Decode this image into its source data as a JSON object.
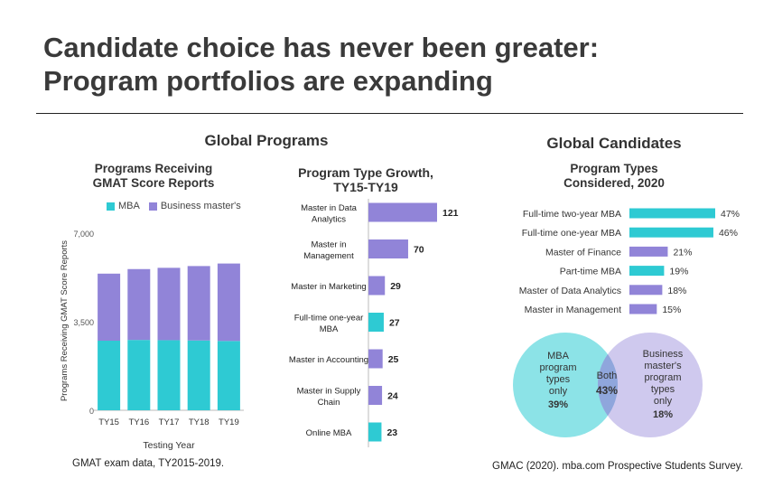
{
  "slide": {
    "title_line1": "Candidate choice has never been greater:",
    "title_line2": "Program portfolios are expanding"
  },
  "sections": {
    "global_programs": "Global Programs",
    "global_candidates": "Global Candidates"
  },
  "colors": {
    "mba": "#2ecad3",
    "business_masters": "#9184d8",
    "venn_mba": "#7fe0e4",
    "venn_bm": "#bfb7e8",
    "venn_overlap": "#8fa6dc"
  },
  "notes": {
    "left": "GMAT exam data, TY2015-2019.",
    "right": "GMAC (2020). mba.com Prospective Students Survey."
  },
  "chart_data": [
    {
      "type": "bar",
      "stacked": true,
      "title_line1": "Programs Receiving",
      "title_line2": "GMAT Score Reports",
      "xlabel": "Testing Year",
      "ylabel": "Programs Receiving GMAT Score Reports",
      "categories": [
        "TY15",
        "TY16",
        "TY17",
        "TY18",
        "TY19"
      ],
      "ylim": [
        0,
        7000
      ],
      "yticks": [
        "0",
        "3,500",
        "7,000"
      ],
      "ytick_values": [
        0,
        3500,
        7000
      ],
      "series": [
        {
          "name": "MBA",
          "values": [
            2750,
            2780,
            2770,
            2760,
            2740
          ]
        },
        {
          "name": "Business master's",
          "values": [
            2650,
            2800,
            2860,
            2940,
            3060
          ]
        }
      ]
    },
    {
      "type": "bar",
      "orientation": "horizontal",
      "title_line1": "Program Type Growth,",
      "title_line2": "TY15-TY19",
      "categories": [
        [
          "Master in Data",
          "Analytics"
        ],
        [
          "Master in",
          "Management"
        ],
        [
          "Master in Marketing"
        ],
        [
          "Full-time one-year",
          "MBA"
        ],
        [
          "Master in Accounting"
        ],
        [
          "Master in Supply",
          "Chain"
        ],
        [
          "Online MBA"
        ]
      ],
      "values": [
        121,
        70,
        29,
        27,
        25,
        24,
        23
      ],
      "value_labels": [
        "121",
        "70",
        "29",
        "27",
        "25",
        "24",
        "23"
      ],
      "groups": [
        "bm",
        "bm",
        "bm",
        "mba",
        "bm",
        "bm",
        "mba"
      ]
    },
    {
      "type": "bar",
      "orientation": "horizontal",
      "title_line1": "Program Types",
      "title_line2": "Considered, 2020",
      "categories": [
        "Full-time two-year MBA",
        "Full-time one-year MBA",
        "Master of Finance",
        "Part-time MBA",
        "Master of Data Analytics",
        "Master in Management"
      ],
      "values": [
        47,
        46,
        21,
        19,
        18,
        15
      ],
      "value_labels": [
        "47%",
        "46%",
        "21%",
        "19%",
        "18%",
        "15%"
      ],
      "groups": [
        "mba",
        "mba",
        "bm",
        "mba",
        "bm",
        "bm"
      ]
    },
    {
      "type": "venn",
      "sets": [
        {
          "label_lines": [
            "MBA",
            "program",
            "types",
            "only"
          ],
          "value": 39,
          "value_label": "39%"
        },
        {
          "label_lines": [
            "Business",
            "master's",
            "program",
            "types",
            "only"
          ],
          "value": 18,
          "value_label": "18%"
        }
      ],
      "overlap": {
        "label": "Both",
        "value": 43,
        "value_label": "43%"
      }
    }
  ]
}
